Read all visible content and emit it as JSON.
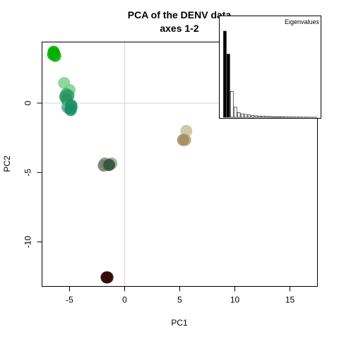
{
  "chart_data": {
    "type": "scatter",
    "title": "PCA of the DENV data",
    "subtitle": "axes 1-2",
    "xlabel": "PC1",
    "ylabel": "PC2",
    "xlim": [
      -7.5,
      17.5
    ],
    "ylim": [
      -13.2,
      4.4
    ],
    "xticks": [
      -5,
      0,
      5,
      10,
      15
    ],
    "yticks": [
      -10,
      -5,
      0
    ],
    "xtick_labels": [
      "-5",
      "0",
      "5",
      "10",
      "15"
    ],
    "ytick_labels": [
      "-10",
      "-5",
      "0"
    ],
    "reference_lines": {
      "x": 0,
      "y": 0,
      "color": "#d3d3d3"
    },
    "grid": false,
    "points": [
      {
        "x": -6.4,
        "y": 3.6,
        "color": "#00b000"
      },
      {
        "x": -6.5,
        "y": 3.5,
        "color": "#00b000"
      },
      {
        "x": -6.3,
        "y": 3.4,
        "color": "#00b000"
      },
      {
        "x": -6.45,
        "y": 3.7,
        "color": "#00b000"
      },
      {
        "x": -5.5,
        "y": 1.45,
        "color": "#7fcf8f"
      },
      {
        "x": -5.0,
        "y": 0.95,
        "color": "#7fcf8f"
      },
      {
        "x": -5.3,
        "y": 0.65,
        "color": "#3fa86a"
      },
      {
        "x": -5.4,
        "y": 0.45,
        "color": "#2f9c63"
      },
      {
        "x": -5.1,
        "y": 0.55,
        "color": "#2f9c63"
      },
      {
        "x": -5.25,
        "y": 0.25,
        "color": "#2a9460"
      },
      {
        "x": -5.0,
        "y": -0.35,
        "color": "#4eb07e"
      },
      {
        "x": -4.8,
        "y": -0.3,
        "color": "#4eb07e"
      },
      {
        "x": -5.2,
        "y": -0.3,
        "color": "#4eb07e"
      },
      {
        "x": -4.9,
        "y": -0.5,
        "color": "#168a63"
      },
      {
        "x": -4.85,
        "y": -0.15,
        "color": "#1a8d66"
      },
      {
        "x": 5.6,
        "y": -2.0,
        "color": "#c8bf98"
      },
      {
        "x": 5.5,
        "y": -2.65,
        "color": "#b8a37a"
      },
      {
        "x": 5.3,
        "y": -2.65,
        "color": "#a08c5c"
      },
      {
        "x": -1.2,
        "y": -4.35,
        "color": "#9aa891"
      },
      {
        "x": -1.5,
        "y": -4.45,
        "color": "#7f8f79"
      },
      {
        "x": -1.8,
        "y": -4.35,
        "color": "#7f8f79"
      },
      {
        "x": -1.9,
        "y": -4.5,
        "color": "#6e7f69"
      },
      {
        "x": -1.4,
        "y": -4.45,
        "color": "#2e4e38"
      },
      {
        "x": -1.55,
        "y": -12.55,
        "color": "#3a0a0a"
      },
      {
        "x": -1.65,
        "y": -12.55,
        "color": "#2e0505"
      }
    ],
    "inset": {
      "type": "bar",
      "title": "Eigenvalues",
      "values": [
        30,
        22,
        9,
        3.5,
        1.6,
        1.2,
        1.0,
        0.8,
        0.6,
        0.5,
        0.4,
        0.35,
        0.3,
        0.25,
        0.2,
        0.18,
        0.15,
        0.12,
        0.1,
        0.09,
        0.08,
        0.07,
        0.06,
        0.05,
        0.04,
        0.03,
        0.02
      ],
      "highlighted_count": 2,
      "highlight_color": "#000000",
      "bar_color": "#ffffff",
      "ymax": 32
    }
  }
}
